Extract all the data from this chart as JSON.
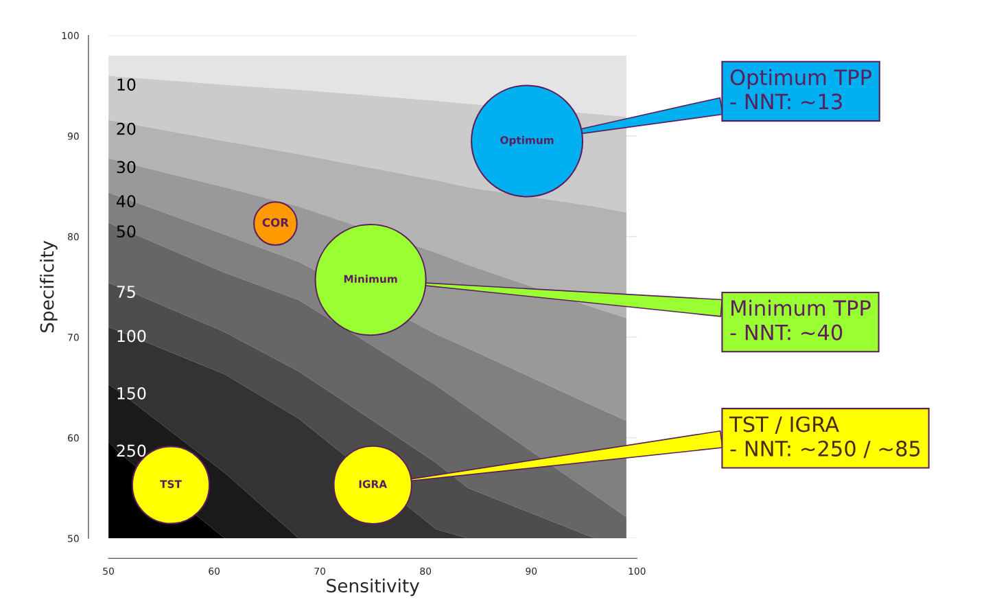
{
  "chart_data": {
    "type": "bubble",
    "xlabel": "Sensitivity",
    "ylabel": "Specificity",
    "xlim": [
      50,
      100
    ],
    "ylim": [
      50,
      100
    ],
    "xticks": [
      50,
      60,
      70,
      80,
      90,
      100
    ],
    "yticks": [
      50,
      60,
      70,
      80,
      90,
      100
    ],
    "grid": "y",
    "legend": false,
    "series": [
      {
        "type": "area",
        "color": "#e4e4e4",
        "x": [
          50,
          51,
          61,
          68,
          81,
          84,
          96,
          99
        ],
        "values": [
          98,
          98,
          98,
          98,
          98,
          98,
          98,
          98
        ]
      },
      {
        "type": "area",
        "name": "10",
        "color": "#cbcbcb",
        "x": [
          50,
          51,
          61,
          68,
          81,
          84,
          96,
          99
        ],
        "values": [
          96.0,
          95.9,
          95.1,
          94.6,
          93.5,
          93.2,
          92.2,
          91.9
        ]
      },
      {
        "type": "area",
        "name": "20",
        "color": "#b3b3b3",
        "x": [
          50,
          51,
          61,
          68,
          81,
          84,
          96,
          99
        ],
        "values": [
          91.6,
          91.4,
          89.5,
          88.2,
          85.6,
          84.9,
          83.0,
          82.4
        ]
      },
      {
        "type": "area",
        "name": "30",
        "color": "#999999",
        "x": [
          50,
          51,
          61,
          68,
          81,
          84,
          96,
          99
        ],
        "values": [
          87.8,
          87.5,
          84.9,
          83.0,
          78.4,
          77.2,
          72.9,
          71.9
        ]
      },
      {
        "type": "area",
        "name": "40",
        "color": "#808080",
        "x": [
          50,
          51,
          61,
          68,
          81,
          84,
          96,
          99
        ],
        "values": [
          84.4,
          84.0,
          80.2,
          77.5,
          70.3,
          68.9,
          63.1,
          61.7
        ]
      },
      {
        "type": "area",
        "name": "50",
        "color": "#666666",
        "x": [
          50,
          51,
          61,
          68,
          81,
          84,
          96,
          99
        ],
        "values": [
          81.4,
          80.9,
          76.4,
          73.7,
          65.2,
          63.0,
          54.3,
          52.1
        ]
      },
      {
        "type": "area",
        "name": "75",
        "color": "#4d4d4d",
        "x": [
          50,
          51,
          61,
          68,
          81,
          84,
          96,
          99
        ],
        "values": [
          75.4,
          75.0,
          70.5,
          66.6,
          57.5,
          55.0,
          50,
          50
        ]
      },
      {
        "type": "area",
        "name": "100",
        "color": "#333333",
        "x": [
          50,
          51,
          61,
          68,
          81,
          84,
          96,
          99
        ],
        "values": [
          71.0,
          70.6,
          66.3,
          61.9,
          50.9,
          50,
          50,
          50
        ]
      },
      {
        "type": "area",
        "name": "150",
        "color": "#1a1a1a",
        "x": [
          50,
          51,
          61,
          68,
          81,
          84,
          96,
          99
        ],
        "values": [
          65.3,
          64.6,
          56.5,
          50,
          50,
          50,
          50,
          50
        ]
      },
      {
        "type": "area",
        "name": "250",
        "color": "#000000",
        "x": [
          50,
          51,
          61,
          68,
          81,
          84,
          96,
          99
        ],
        "values": [
          59.6,
          58.5,
          50,
          50,
          50,
          50,
          50,
          50
        ]
      },
      {
        "name": "Optimum",
        "color": "#00b0f0",
        "x": [
          89.6
        ],
        "values": [
          89.5
        ],
        "sizes": [
          1
        ]
      },
      {
        "name": "COR",
        "color": "#ff9900",
        "x": [
          65.8
        ],
        "values": [
          81.3
        ],
        "sizes": [
          0.15
        ]
      },
      {
        "name": "Minimum",
        "color": "#99ff33",
        "x": [
          74.8
        ],
        "values": [
          75.7
        ],
        "sizes": [
          0.99
        ]
      },
      {
        "name": "TST",
        "color": "#ffff00",
        "x": [
          55.9
        ],
        "values": [
          55.3
        ],
        "sizes": [
          0.48
        ]
      },
      {
        "name": "IGRA",
        "color": "#ffff00",
        "x": [
          75.0
        ],
        "values": [
          55.3
        ],
        "sizes": [
          0.49
        ]
      }
    ],
    "annotations": [
      {
        "text": "Optimum TPP\n- NNT: ~13",
        "x": 89.6,
        "y": 89.5
      },
      {
        "text": "Minimum TPP\n- NNT: ~40",
        "x": 74.8,
        "y": 75.7
      },
      {
        "text": "TST / IGRA\n- NNT: ~250 / ~85",
        "x": 75.0,
        "y": 55.3
      }
    ]
  }
}
